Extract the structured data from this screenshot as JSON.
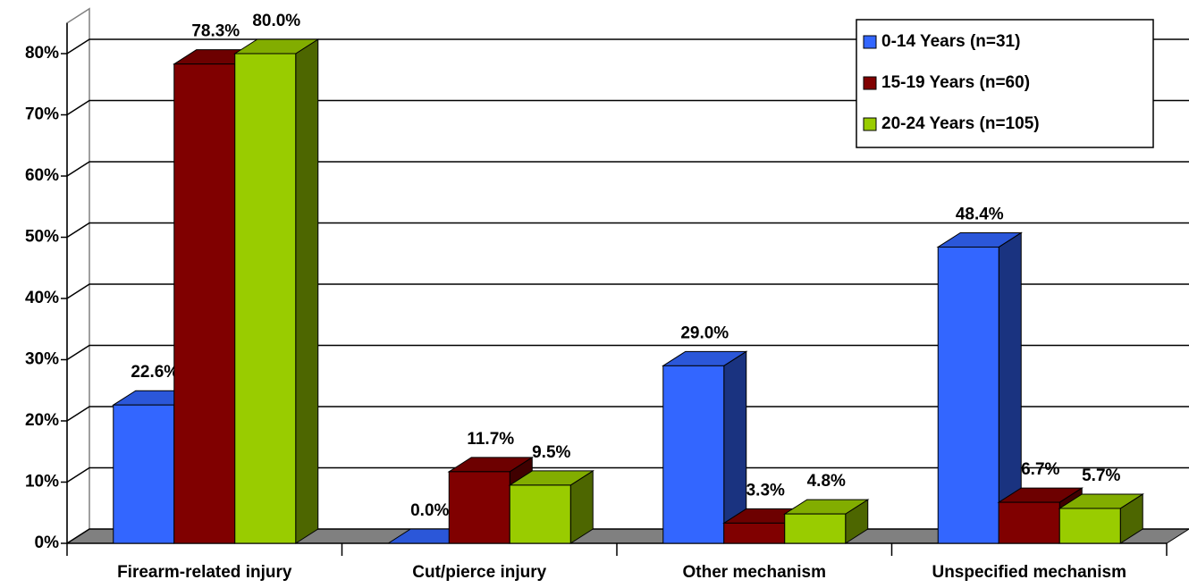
{
  "chart_data": {
    "type": "bar3d",
    "categories": [
      "Firearm-related injury",
      "Cut/pierce injury",
      "Other mechanism",
      "Unspecified mechanism"
    ],
    "series": [
      {
        "name": "0-14 Years (n=31)",
        "color": "#3366ff",
        "values": [
          22.6,
          0.0,
          29.0,
          48.4
        ],
        "value_labels": [
          "22.6%",
          "0.0%",
          "29.0%",
          "48.4%"
        ]
      },
      {
        "name": "15-19 Years (n=60)",
        "color": "#800000",
        "values": [
          78.3,
          11.7,
          3.3,
          6.7
        ],
        "value_labels": [
          "78.3%",
          "11.7%",
          "3.3%",
          "6.7%"
        ]
      },
      {
        "name": "20-24 Years (n=105)",
        "color": "#99cc00",
        "values": [
          80.0,
          9.5,
          4.8,
          5.7
        ],
        "value_labels": [
          "80.0%",
          "9.5%",
          "4.8%",
          "5.7%"
        ]
      }
    ],
    "ylim": [
      0,
      85
    ],
    "yticks": [
      {
        "value": 0,
        "label": "0%"
      },
      {
        "value": 10,
        "label": "10%"
      },
      {
        "value": 20,
        "label": "20%"
      },
      {
        "value": 30,
        "label": "30%"
      },
      {
        "value": 40,
        "label": "40%"
      },
      {
        "value": 50,
        "label": "50%"
      },
      {
        "value": 60,
        "label": "60%"
      },
      {
        "value": 70,
        "label": "70%"
      },
      {
        "value": 80,
        "label": "80%"
      }
    ],
    "grid": true,
    "legend": "top-right"
  }
}
